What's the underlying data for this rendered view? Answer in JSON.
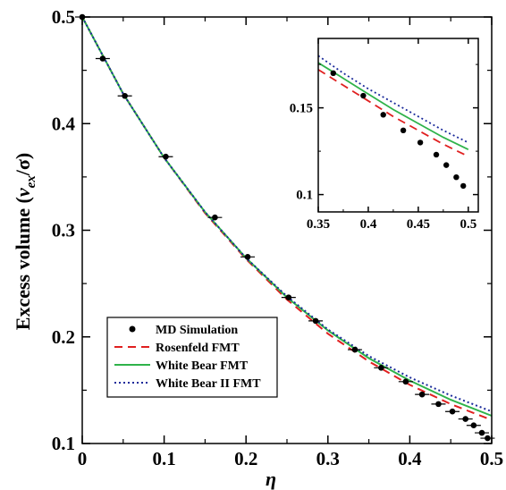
{
  "chart_data": [
    {
      "type": "line",
      "title": "",
      "xlabel": "η",
      "ylabel": {
        "prefix": "Excess volume (",
        "var": "v",
        "sub": "ex",
        "rest": "/σ)"
      },
      "xlim": [
        0,
        0.5
      ],
      "ylim": [
        0.1,
        0.5
      ],
      "xticks": [
        "0",
        "0.1",
        "0.2",
        "0.3",
        "0.4",
        "0.5"
      ],
      "yticks": [
        "0.1",
        "0.2",
        "0.3",
        "0.4",
        "0.5"
      ],
      "xtick_values": [
        0,
        0.1,
        0.2,
        0.3,
        0.4,
        0.5
      ],
      "ytick_values": [
        0.1,
        0.2,
        0.3,
        0.4,
        0.5
      ],
      "legend_position": "bottom-left",
      "grid": false,
      "series": [
        {
          "name": "MD Simulation",
          "kind": "scatter",
          "color": "#000000",
          "x": [
            0,
            0.025,
            0.052,
            0.102,
            0.162,
            0.202,
            0.252,
            0.285,
            0.333,
            0.365,
            0.395,
            0.415,
            0.435,
            0.452,
            0.468,
            0.478,
            0.488,
            0.495
          ],
          "y": [
            0.5,
            0.461,
            0.426,
            0.369,
            0.312,
            0.275,
            0.237,
            0.215,
            0.188,
            0.171,
            0.158,
            0.146,
            0.137,
            0.13,
            0.123,
            0.117,
            0.11,
            0.105
          ]
        },
        {
          "name": "Rosenfeld FMT",
          "kind": "line",
          "color": "#e02020",
          "dash": "9,6",
          "x": [
            0,
            0.05,
            0.1,
            0.15,
            0.2,
            0.25,
            0.3,
            0.35,
            0.4,
            0.45,
            0.5
          ],
          "y": [
            0.5,
            0.428,
            0.368,
            0.316,
            0.273,
            0.235,
            0.203,
            0.177,
            0.155,
            0.137,
            0.122
          ]
        },
        {
          "name": "White Bear FMT",
          "kind": "line",
          "color": "#2fb34a",
          "dash": "",
          "x": [
            0,
            0.05,
            0.1,
            0.15,
            0.2,
            0.25,
            0.3,
            0.35,
            0.4,
            0.45,
            0.5
          ],
          "y": [
            0.5,
            0.428,
            0.368,
            0.317,
            0.274,
            0.237,
            0.206,
            0.18,
            0.159,
            0.141,
            0.126
          ]
        },
        {
          "name": "White Bear II FMT",
          "kind": "line",
          "color": "#1a2a9a",
          "dash": "2,3",
          "x": [
            0,
            0.05,
            0.1,
            0.15,
            0.2,
            0.25,
            0.3,
            0.35,
            0.4,
            0.45,
            0.5
          ],
          "y": [
            0.5,
            0.428,
            0.368,
            0.317,
            0.274,
            0.238,
            0.207,
            0.182,
            0.162,
            0.145,
            0.13
          ]
        }
      ]
    },
    {
      "type": "line",
      "title": "",
      "xlabel": "",
      "ylabel": "",
      "xlim": [
        0.35,
        0.51
      ],
      "ylim": [
        0.09,
        0.19
      ],
      "xticks": [
        "0.35",
        "0.4",
        "0.45",
        "0.5"
      ],
      "yticks": [
        "0.1",
        "0.15"
      ],
      "xtick_values": [
        0.35,
        0.4,
        0.45,
        0.5
      ],
      "ytick_values": [
        0.1,
        0.15
      ],
      "grid": false,
      "series": [
        {
          "name": "MD Simulation",
          "kind": "scatter",
          "color": "#000000",
          "x": [
            0.365,
            0.395,
            0.415,
            0.435,
            0.452,
            0.468,
            0.478,
            0.488,
            0.495
          ],
          "y": [
            0.17,
            0.157,
            0.146,
            0.137,
            0.13,
            0.123,
            0.117,
            0.11,
            0.105
          ]
        },
        {
          "name": "Rosenfeld FMT",
          "kind": "line",
          "color": "#e02020",
          "dash": "9,6",
          "x": [
            0.35,
            0.375,
            0.4,
            0.425,
            0.45,
            0.475,
            0.5
          ],
          "y": [
            0.172,
            0.163,
            0.154,
            0.145,
            0.137,
            0.129,
            0.122
          ]
        },
        {
          "name": "White Bear FMT",
          "kind": "line",
          "color": "#2fb34a",
          "dash": "",
          "x": [
            0.35,
            0.375,
            0.4,
            0.425,
            0.45,
            0.475,
            0.5
          ],
          "y": [
            0.176,
            0.167,
            0.158,
            0.149,
            0.141,
            0.133,
            0.126
          ]
        },
        {
          "name": "White Bear II FMT",
          "kind": "line",
          "color": "#1a2a9a",
          "dash": "2,3",
          "x": [
            0.35,
            0.375,
            0.4,
            0.425,
            0.45,
            0.475,
            0.5
          ],
          "y": [
            0.18,
            0.17,
            0.161,
            0.153,
            0.145,
            0.137,
            0.13
          ]
        }
      ]
    }
  ]
}
